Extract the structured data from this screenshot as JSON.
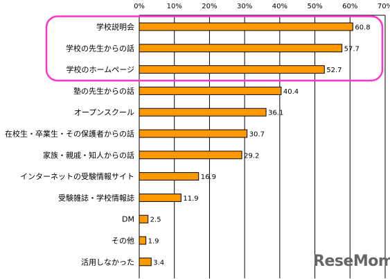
{
  "chart_data": {
    "type": "bar",
    "orientation": "horizontal",
    "categories": [
      "学校説明会",
      "学校の先生からの話",
      "学校のホームページ",
      "塾の先生からの話",
      "オープンスクール",
      "在校生・卒業生・その保護者からの話",
      "家族・親戚・知人からの話",
      "インターネットの受験情報サイト",
      "受験雑誌・学校情報誌",
      "DM",
      "その他",
      "活用しなかった"
    ],
    "values": [
      60.8,
      57.7,
      52.7,
      40.4,
      36.1,
      30.7,
      29.2,
      16.9,
      11.9,
      2.5,
      1.9,
      3.4
    ],
    "value_labels": [
      "60.8",
      "57.7",
      "52.7",
      "40.4",
      "36.1",
      "30.7",
      "29.2",
      "16.9",
      "11.9",
      "2.5",
      "1.9",
      "3.4"
    ],
    "x_ticks": [
      "0%",
      "10%",
      "20%",
      "30%",
      "40%",
      "50%",
      "60%",
      "70%"
    ],
    "xlim": [
      0,
      70
    ],
    "grid": true,
    "axis_position": "top",
    "highlight": {
      "first": 0,
      "last": 2,
      "color": "#ff33cc"
    },
    "bar_color": "#ff9900"
  },
  "watermark": "ReseMom"
}
